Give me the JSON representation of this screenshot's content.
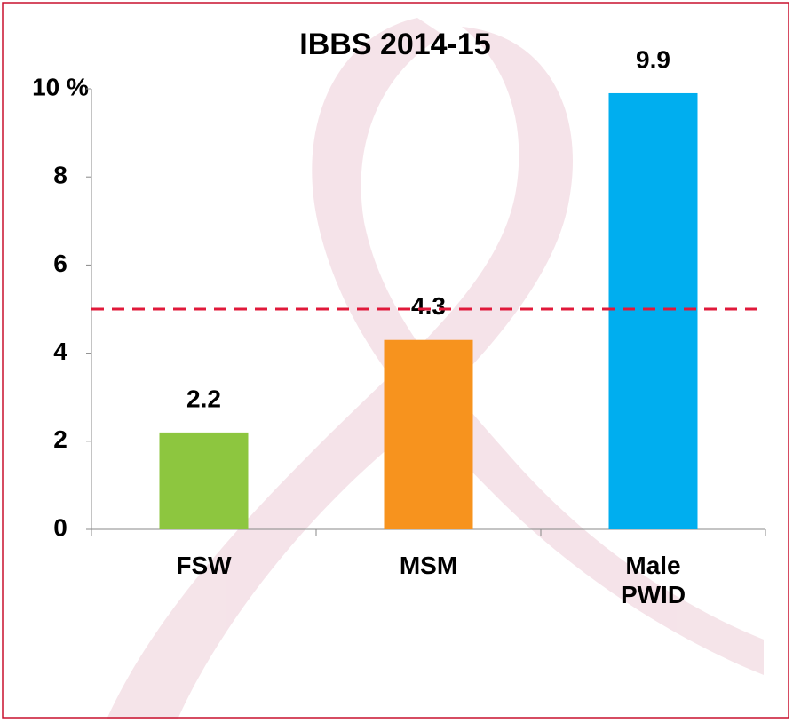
{
  "chart_data": {
    "type": "bar",
    "title": "IBBS 2014-15",
    "categories": [
      "FSW",
      "MSM",
      "Male PWID"
    ],
    "values": [
      2.2,
      4.3,
      9.9
    ],
    "colors": [
      "#8dc63f",
      "#f7931e",
      "#00aeef"
    ],
    "ylim": [
      0,
      10
    ],
    "yticks": [
      0,
      2,
      4,
      6,
      8,
      {
        "value": 10,
        "label": "10 %"
      }
    ],
    "reference_line": {
      "value": 5,
      "color": "#e0193a"
    }
  }
}
